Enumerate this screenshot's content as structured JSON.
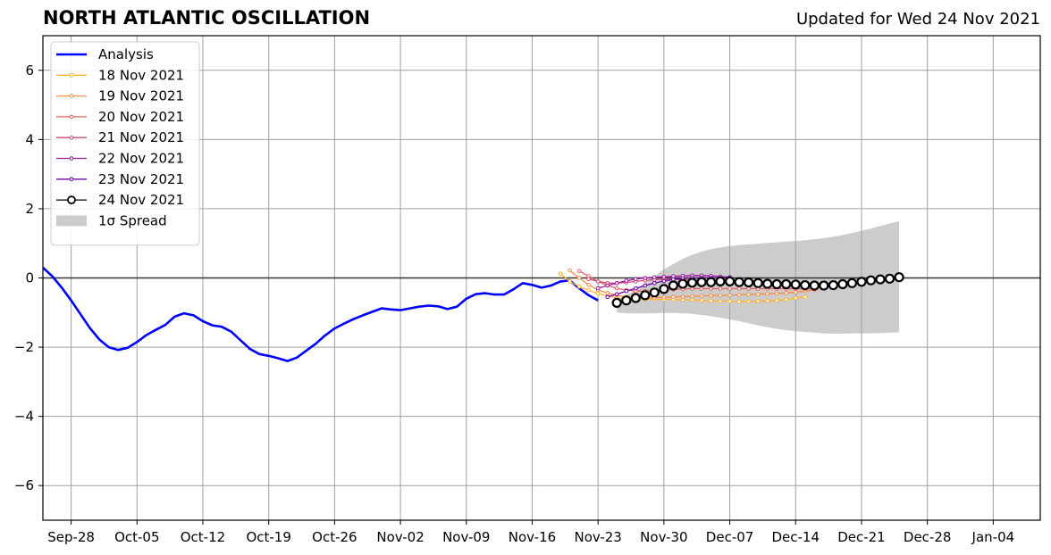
{
  "header": {
    "title": "NORTH ATLANTIC OSCILLATION",
    "subtitle": "Updated for Wed 24 Nov 2021"
  },
  "chart_data": {
    "type": "line",
    "title": "NORTH ATLANTIC OSCILLATION",
    "subtitle": "Updated for Wed 24 Nov 2021",
    "xlabel": "",
    "ylabel": "",
    "xlim": [
      "2021-09-25",
      "2022-01-09"
    ],
    "ylim": [
      -7,
      7
    ],
    "grid": true,
    "legend_position": "top-left",
    "x_ticks": [
      {
        "date": "2021-09-28",
        "label": "Sep-28"
      },
      {
        "date": "2021-10-05",
        "label": "Oct-05"
      },
      {
        "date": "2021-10-12",
        "label": "Oct-12"
      },
      {
        "date": "2021-10-19",
        "label": "Oct-19"
      },
      {
        "date": "2021-10-26",
        "label": "Oct-26"
      },
      {
        "date": "2021-11-02",
        "label": "Nov-02"
      },
      {
        "date": "2021-11-09",
        "label": "Nov-09"
      },
      {
        "date": "2021-11-16",
        "label": "Nov-16"
      },
      {
        "date": "2021-11-23",
        "label": "Nov-23"
      },
      {
        "date": "2021-11-30",
        "label": "Nov-30"
      },
      {
        "date": "2021-12-07",
        "label": "Dec-07"
      },
      {
        "date": "2021-12-14",
        "label": "Dec-14"
      },
      {
        "date": "2021-12-21",
        "label": "Dec-21"
      },
      {
        "date": "2021-12-28",
        "label": "Dec-28"
      },
      {
        "date": "2022-01-04",
        "label": "Jan-04"
      }
    ],
    "y_ticks": [
      {
        "value": -6,
        "label": "−6"
      },
      {
        "value": -4,
        "label": "−4"
      },
      {
        "value": -2,
        "label": "−2"
      },
      {
        "value": 0,
        "label": "0"
      },
      {
        "value": 2,
        "label": "2"
      },
      {
        "value": 4,
        "label": "4"
      },
      {
        "value": 6,
        "label": "6"
      }
    ],
    "analysis": {
      "name": "Analysis",
      "color": "#0000ff",
      "start": "2021-09-25",
      "values": [
        0.3,
        0.05,
        -0.28,
        -0.65,
        -1.05,
        -1.45,
        -1.78,
        -2.0,
        -2.08,
        -2.02,
        -1.85,
        -1.65,
        -1.5,
        -1.36,
        -1.12,
        -1.02,
        -1.08,
        -1.25,
        -1.37,
        -1.41,
        -1.55,
        -1.8,
        -2.05,
        -2.2,
        -2.25,
        -2.32,
        -2.4,
        -2.3,
        -2.1,
        -1.9,
        -1.66,
        -1.46,
        -1.32,
        -1.19,
        -1.08,
        -0.98,
        -0.88,
        -0.91,
        -0.93,
        -0.88,
        -0.83,
        -0.8,
        -0.82,
        -0.9,
        -0.83,
        -0.6,
        -0.47,
        -0.44,
        -0.48,
        -0.48,
        -0.33,
        -0.15,
        -0.2,
        -0.28,
        -0.22,
        -0.1,
        -0.07,
        -0.3,
        -0.5,
        -0.65
      ]
    },
    "forecasts": [
      {
        "name": "18 Nov 2021",
        "color": "#fdb42f",
        "start": "2021-11-19",
        "values": [
          0.12,
          -0.1,
          -0.25,
          -0.35,
          -0.45,
          -0.52,
          -0.58,
          -0.62,
          -0.63,
          -0.62,
          -0.62,
          -0.62,
          -0.62,
          -0.63,
          -0.63,
          -0.65,
          -0.66,
          -0.67,
          -0.67,
          -0.68,
          -0.68,
          -0.67,
          -0.66,
          -0.65,
          -0.62,
          -0.58,
          -0.55
        ]
      },
      {
        "name": "19 Nov 2021",
        "color": "#f58c47",
        "start": "2021-11-20",
        "values": [
          0.22,
          0.0,
          -0.2,
          -0.35,
          -0.43,
          -0.5,
          -0.55,
          -0.58,
          -0.58,
          -0.57,
          -0.56,
          -0.55,
          -0.54,
          -0.53,
          -0.52,
          -0.51,
          -0.5,
          -0.5,
          -0.49,
          -0.48,
          -0.47,
          -0.46,
          -0.45,
          -0.43,
          -0.41,
          -0.38,
          -0.35
        ]
      },
      {
        "name": "20 Nov 2021",
        "color": "#e16462",
        "start": "2021-11-21",
        "values": [
          0.2,
          0.05,
          -0.1,
          -0.22,
          -0.3,
          -0.35,
          -0.38,
          -0.38,
          -0.37,
          -0.35,
          -0.33,
          -0.32,
          -0.31,
          -0.31,
          -0.31,
          -0.31,
          -0.31,
          -0.31,
          -0.31,
          -0.31,
          -0.31,
          -0.31,
          -0.31,
          -0.31,
          -0.32,
          -0.32
        ]
      },
      {
        "name": "21 Nov 2021",
        "color": "#cc4778",
        "start": "2021-11-22",
        "values": [
          -0.03,
          -0.1,
          -0.15,
          -0.15,
          -0.13,
          -0.1,
          -0.07,
          -0.05,
          -0.04,
          -0.04,
          -0.05,
          -0.06,
          -0.08,
          -0.09,
          -0.1,
          -0.11,
          -0.12,
          -0.13,
          -0.13,
          -0.14,
          -0.14,
          -0.14,
          -0.14,
          -0.15,
          -0.15
        ]
      },
      {
        "name": "22 Nov 2021",
        "color": "#9c179e",
        "start": "2021-11-23",
        "values": [
          -0.3,
          -0.22,
          -0.15,
          -0.08,
          -0.03,
          0.0,
          0.02,
          0.03,
          0.05,
          0.06,
          0.07,
          0.07,
          0.06,
          0.04,
          0.02
        ]
      },
      {
        "name": "23 Nov 2021",
        "color": "#6a00a8",
        "start": "2021-11-24",
        "values": [
          -0.55,
          -0.47,
          -0.38,
          -0.3,
          -0.22,
          -0.15,
          -0.09,
          -0.04,
          -0.01,
          0.0,
          0.0,
          0.0,
          0.0,
          0.0
        ]
      },
      {
        "name": "24 Nov 2021",
        "color": "#000000",
        "start": "2021-11-25",
        "values": [
          -0.72,
          -0.65,
          -0.58,
          -0.5,
          -0.42,
          -0.32,
          -0.22,
          -0.17,
          -0.14,
          -0.12,
          -0.12,
          -0.1,
          -0.1,
          -0.12,
          -0.13,
          -0.15,
          -0.17,
          -0.18,
          -0.18,
          -0.19,
          -0.21,
          -0.22,
          -0.22,
          -0.21,
          -0.18,
          -0.15,
          -0.11,
          -0.07,
          -0.04,
          -0.02,
          0.02
        ]
      }
    ],
    "spread": {
      "name": "1σ Spread",
      "color": "#cccccc",
      "start": "2021-11-25",
      "upper": [
        -0.6,
        -0.5,
        -0.35,
        -0.15,
        0.05,
        0.25,
        0.4,
        0.55,
        0.67,
        0.76,
        0.83,
        0.88,
        0.92,
        0.95,
        0.97,
        0.99,
        1.01,
        1.03,
        1.05,
        1.07,
        1.09,
        1.12,
        1.15,
        1.19,
        1.24,
        1.3,
        1.36,
        1.43,
        1.5,
        1.57,
        1.64
      ],
      "lower": [
        -1.0,
        -1.02,
        -1.03,
        -1.03,
        -1.02,
        -1.01,
        -1.01,
        -1.02,
        -1.04,
        -1.07,
        -1.1,
        -1.15,
        -1.2,
        -1.25,
        -1.31,
        -1.37,
        -1.42,
        -1.47,
        -1.51,
        -1.54,
        -1.56,
        -1.58,
        -1.6,
        -1.61,
        -1.61,
        -1.6,
        -1.6,
        -1.6,
        -1.59,
        -1.58,
        -1.57
      ]
    },
    "legend": [
      {
        "label": "Analysis",
        "key": "analysis"
      },
      {
        "label": "18 Nov 2021",
        "key": "f0"
      },
      {
        "label": "19 Nov 2021",
        "key": "f1"
      },
      {
        "label": "20 Nov 2021",
        "key": "f2"
      },
      {
        "label": "21 Nov 2021",
        "key": "f3"
      },
      {
        "label": "22 Nov 2021",
        "key": "f4"
      },
      {
        "label": "23 Nov 2021",
        "key": "f5"
      },
      {
        "label": "24 Nov 2021",
        "key": "f6"
      },
      {
        "label": "1σ Spread",
        "key": "spread"
      }
    ]
  }
}
